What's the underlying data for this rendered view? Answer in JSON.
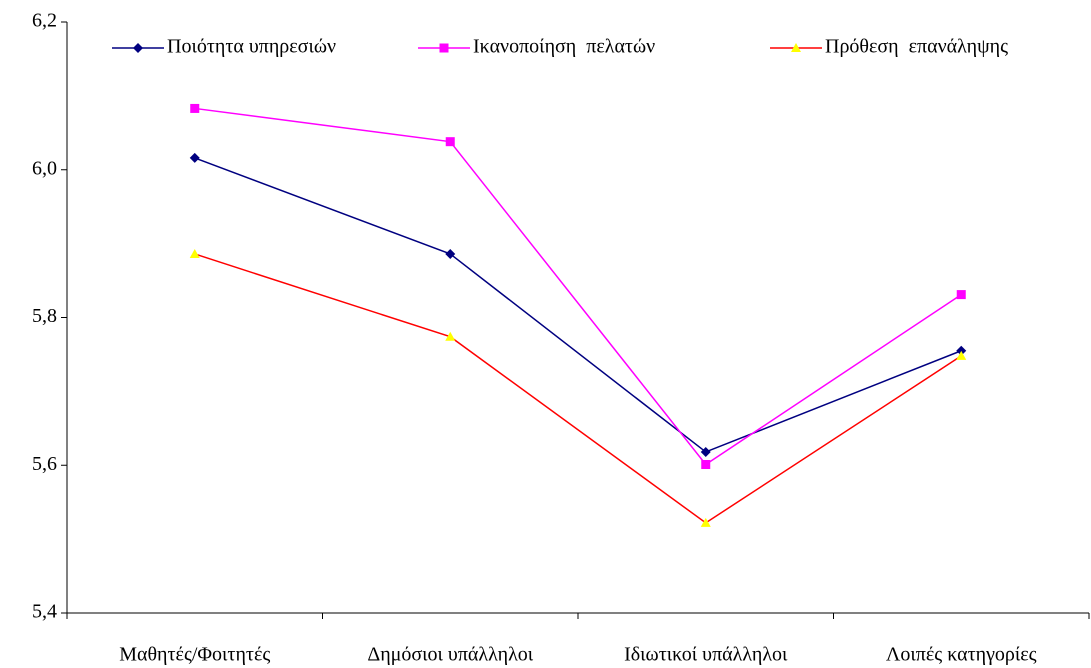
{
  "chart_data": {
    "type": "line",
    "categories": [
      "Μαθητές/Φοιτητές",
      "Δημόσιοι υπάλληλοι",
      "Ιδιωτικοί υπάλληλοι",
      "Λοιπές κατηγορίες"
    ],
    "series": [
      {
        "name": "Ποιότητα υπηρεσιών",
        "color": "#000080",
        "marker": "diamond",
        "marker_color": "#000080",
        "values": [
          6.016,
          5.886,
          5.618,
          5.755
        ]
      },
      {
        "name": "Ικανοποίηση  πελατών",
        "color": "#ff00ff",
        "marker": "square",
        "marker_color": "#ff00ff",
        "values": [
          6.083,
          6.038,
          5.601,
          5.831
        ]
      },
      {
        "name": "Πρόθεση  επανάληψης",
        "color": "#ff0000",
        "marker": "triangle",
        "marker_color": "#ffff00",
        "values": [
          5.886,
          5.774,
          5.522,
          5.748
        ]
      }
    ],
    "ylim": [
      5.4,
      6.2
    ],
    "yticks": [
      {
        "value": 5.4,
        "label": "5,4"
      },
      {
        "value": 5.6,
        "label": "5,6"
      },
      {
        "value": 5.8,
        "label": "5,8"
      },
      {
        "value": 6.0,
        "label": "6,0"
      },
      {
        "value": 6.2,
        "label": "6,2"
      }
    ],
    "legend": "top"
  }
}
